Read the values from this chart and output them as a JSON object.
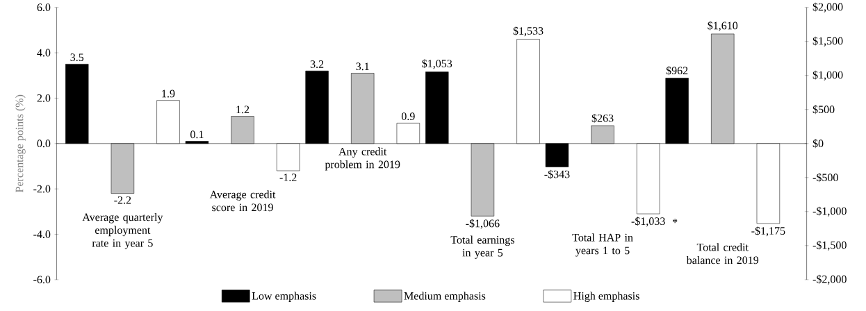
{
  "chart_data": {
    "type": "bar",
    "categories": [
      "Average quarterly employment rate in year 5",
      "Average credit score in 2019",
      "Any credit problem in 2019",
      "Total earnings  in year 5",
      "Total HAP in years 1 to 5",
      "Total credit balance  in 2019"
    ],
    "series": [
      {
        "name": "Low emphasis",
        "color": "#000000",
        "values": [
          3.5,
          0.1,
          3.2,
          null,
          null,
          null
        ],
        "value_labels": [
          "3.5",
          "0.1",
          "3.2",
          null,
          null,
          null
        ]
      },
      {
        "name": "Medium emphasis",
        "color": "#bfbfbf",
        "values": [
          -2.2,
          1.2,
          3.1,
          null,
          null,
          null
        ],
        "value_labels": [
          "-2.2",
          "1.2",
          "3.1",
          null,
          null,
          null
        ]
      },
      {
        "name": "High emphasis",
        "color": "#ffffff",
        "values": [
          1.9,
          -1.2,
          0.9,
          null,
          null,
          null
        ],
        "value_labels": [
          "1.9",
          "-1.2",
          "0.9",
          null,
          null,
          null
        ]
      },
      {
        "color": "#000000",
        "axis": "y2",
        "values": [
          null,
          null,
          null,
          1053,
          -343,
          962
        ],
        "value_labels": [
          null,
          null,
          null,
          "$1,053",
          "-$343",
          "$962"
        ]
      },
      {
        "color": "#bfbfbf",
        "axis": "y2",
        "values": [
          null,
          null,
          null,
          -1066,
          263,
          1610
        ],
        "value_labels": [
          null,
          null,
          null,
          "-$1,066",
          "$263",
          "$1,610"
        ]
      },
      {
        "color": "#ffffff",
        "axis": "y2",
        "values": [
          null,
          null,
          null,
          1533,
          -1033,
          -1175
        ],
        "value_labels": [
          null,
          null,
          null,
          "$1,533",
          "-$1,033",
          "-$1,175"
        ]
      }
    ],
    "ylabel": "Percentage points (%)",
    "ylim": [
      -6,
      6
    ],
    "yticks": [
      {
        "value": -6,
        "label": "-6.0"
      },
      {
        "value": -4,
        "label": "-4.0"
      },
      {
        "value": -2,
        "label": "-2.0"
      },
      {
        "value": 0,
        "label": "0.0"
      },
      {
        "value": 2,
        "label": "2.0"
      },
      {
        "value": 4,
        "label": "4.0"
      },
      {
        "value": 6,
        "label": "6.0"
      }
    ],
    "y2lim": [
      -2000,
      2000
    ],
    "y2ticks": [
      {
        "value": -2000,
        "label": "-$2,000"
      },
      {
        "value": -1500,
        "label": "-$1,500"
      },
      {
        "value": -1000,
        "label": "-$1,000"
      },
      {
        "value": -500,
        "label": "-$500"
      },
      {
        "value": 0,
        "label": "$0"
      },
      {
        "value": 500,
        "label": "$500"
      },
      {
        "value": 1000,
        "label": "$1,000"
      },
      {
        "value": 1500,
        "label": "$1,500"
      },
      {
        "value": 2000,
        "label": "$2,000"
      }
    ],
    "legend": "bottom",
    "annotations": [
      "*"
    ]
  }
}
